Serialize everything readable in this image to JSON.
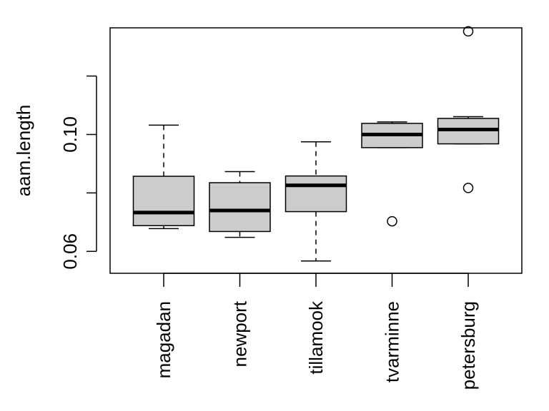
{
  "chart_data": {
    "type": "boxplot",
    "title": "",
    "xlabel": "",
    "ylabel": "aam.length",
    "ylim": [
      0.0525,
      0.1365
    ],
    "yticks": [
      0.06,
      0.08,
      0.1,
      0.12
    ],
    "ytick_labels": [
      "0.06",
      "",
      "0.10",
      ""
    ],
    "grid": false,
    "colors": {
      "box_fill": "#cccccc",
      "stroke": "#000000"
    },
    "categories": [
      "magadan",
      "newport",
      "tillamook",
      "tvarminne",
      "petersburg"
    ],
    "boxes": [
      {
        "name": "magadan",
        "whisker_low": 0.0678,
        "q1": 0.0688,
        "median": 0.0733,
        "q3": 0.0857,
        "whisker_high": 0.1032,
        "outliers": []
      },
      {
        "name": "newport",
        "whisker_low": 0.0648,
        "q1": 0.0668,
        "median": 0.074,
        "q3": 0.0835,
        "whisker_high": 0.0873,
        "outliers": []
      },
      {
        "name": "tillamook",
        "whisker_low": 0.0567,
        "q1": 0.0736,
        "median": 0.0826,
        "q3": 0.0858,
        "whisker_high": 0.0975,
        "outliers": []
      },
      {
        "name": "tvarminne",
        "whisker_low": 0.0955,
        "q1": 0.0955,
        "median": 0.1,
        "q3": 0.1038,
        "whisker_high": 0.1043,
        "outliers": [
          0.0703
        ]
      },
      {
        "name": "petersburg",
        "whisker_low": 0.0968,
        "q1": 0.0968,
        "median": 0.1017,
        "q3": 0.1055,
        "whisker_high": 0.1061,
        "outliers": [
          0.1353,
          0.0817
        ]
      }
    ]
  }
}
